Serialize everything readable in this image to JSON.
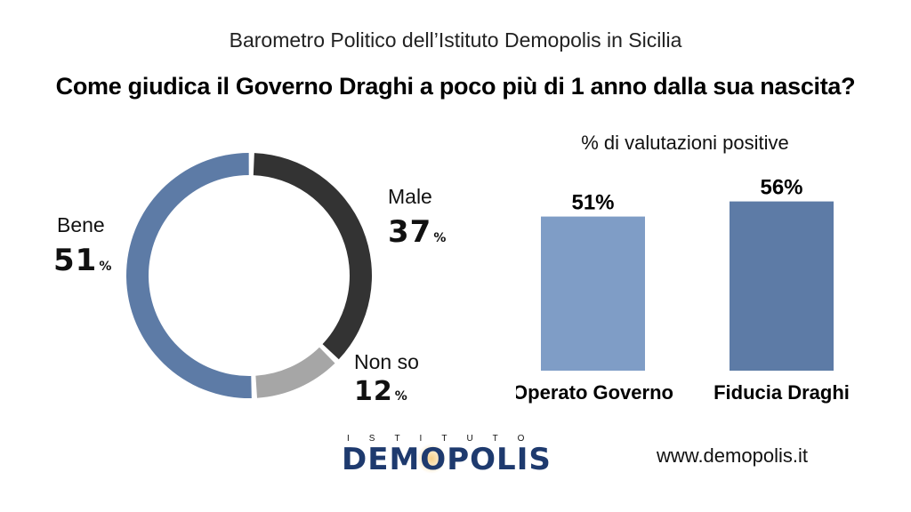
{
  "header": {
    "subtitle": "Barometro Politico dell’Istituto Demopolis in Sicilia",
    "title": "Come giudica il Governo Draghi a poco più di 1 anno dalla sua nascita?"
  },
  "chart_data": [
    {
      "type": "pie",
      "variant": "donut",
      "slices": [
        {
          "label": "Male",
          "value": 37,
          "color": "#333333"
        },
        {
          "label": "Non so",
          "value": 12,
          "color": "#a6a6a6"
        },
        {
          "label": "Bene",
          "value": 51,
          "color": "#5d7ba6"
        }
      ],
      "unit": "%"
    },
    {
      "type": "bar",
      "title": "% di valutazioni positive",
      "categories": [
        "Operato Governo",
        "Fiducia Draghi"
      ],
      "values": [
        51,
        56
      ],
      "value_labels": [
        "51%",
        "56%"
      ],
      "colors": [
        "#7f9dc6",
        "#5d7ba6"
      ],
      "ylim": [
        0,
        100
      ]
    }
  ],
  "labels": {
    "bene": {
      "name": "Bene",
      "value": "51",
      "unit": "%"
    },
    "male": {
      "name": "Male",
      "value": "37",
      "unit": "%"
    },
    "nonso": {
      "name": "Non so",
      "value": "12",
      "unit": "%"
    }
  },
  "footer": {
    "logo_top": "ISTITUTO",
    "logo_main_a": "DEM",
    "logo_main_o": "O",
    "logo_main_b": "POLIS",
    "website": "www.demopolis.it"
  }
}
